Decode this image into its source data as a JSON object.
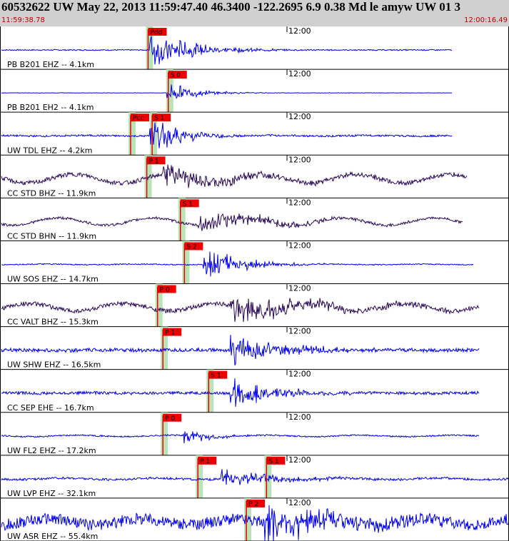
{
  "header": {
    "title": "60532622 UW May 22, 2013 11:59:47.40   46.3400 -122.2695  6.9 0.38 Md le amyw UW 01   3",
    "start_time": "11:59:38.78",
    "end_time": "12:00:16.49"
  },
  "colors": {
    "trace_blue": "#0000ee",
    "trace_purple": "#2a0a5a",
    "pick_red": "#ee0000",
    "highlight_green": "#b8e4b8",
    "header_bg": "#d0d0d0"
  },
  "chart_data": {
    "type": "line",
    "x_axis": {
      "start": "11:59:38.78",
      "end": "12:00:16.49",
      "tick_label": "12:00",
      "tick_time_s": 21.22
    },
    "tracks": [
      {
        "label": "PB B201 EHZ -- 4.1km",
        "color": "blue",
        "picks": [
          {
            "label": "Pdd",
            "t": 10.9
          }
        ],
        "onset_s": 11,
        "amp": 0.9,
        "noise": 0.03,
        "decay": 3,
        "wander": 0,
        "end_s": 33.5
      },
      {
        "label": "PB B201 EH2 -- 4.1km",
        "color": "blue",
        "picks": [
          {
            "label": "S 0",
            "t": 12.4
          }
        ],
        "onset_s": 12.3,
        "amp": 0.5,
        "noise": 0.01,
        "decay": 2,
        "wander": 0,
        "end_s": 33.5
      },
      {
        "label": "UW TDL EHZ -- 4.2km",
        "color": "blue",
        "picks": [
          {
            "label": "Pcc",
            "t": 9.6
          },
          {
            "label": "S 1",
            "t": 11.2
          }
        ],
        "onset_s": 11,
        "amp": 0.75,
        "noise": 0.05,
        "decay": 2.5,
        "wander": 0.02,
        "end_s": 33.5
      },
      {
        "label": "CC STD BHZ -- 11.9km",
        "color": "purple",
        "picks": [
          {
            "label": "P 1",
            "t": 10.8
          }
        ],
        "onset_s": 12,
        "amp": 0.55,
        "noise": 0.12,
        "decay": 5,
        "wander": 0.3,
        "end_s": 34.6
      },
      {
        "label": "CC STD BHN -- 11.9km",
        "color": "purple",
        "picks": [
          {
            "label": "S 1",
            "t": 13.3
          }
        ],
        "onset_s": 14.6,
        "amp": 0.5,
        "noise": 0.07,
        "decay": 5,
        "wander": 0.25,
        "end_s": 34.3
      },
      {
        "label": "UW SOS EHZ -- 14.7km",
        "color": "blue",
        "picks": [
          {
            "label": "S 2",
            "t": 13.6
          }
        ],
        "onset_s": 15,
        "amp": 0.9,
        "noise": 0.03,
        "decay": 2.5,
        "wander": 0.02,
        "end_s": 35.1
      },
      {
        "label": "CC VALT BHZ -- 15.3km",
        "color": "purple",
        "picks": [
          {
            "label": "P 0",
            "t": 11.6
          }
        ],
        "onset_s": 17,
        "amp": 0.6,
        "noise": 0.12,
        "decay": 6,
        "wander": 0.25,
        "end_s": 35.5
      },
      {
        "label": "UW SHW EHZ -- 16.5km",
        "color": "blue",
        "picks": [
          {
            "label": "P 1",
            "t": 12.0
          }
        ],
        "onset_s": 17,
        "amp": 0.7,
        "noise": 0.1,
        "decay": 4,
        "wander": 0.02,
        "end_s": 35.5
      },
      {
        "label": "CC SEP EHE -- 16.7km",
        "color": "blue",
        "picks": [
          {
            "label": "S 1",
            "t": 15.4
          }
        ],
        "onset_s": 17,
        "amp": 0.7,
        "noise": 0.08,
        "decay": 3,
        "wander": 0.02,
        "end_s": 35.5
      },
      {
        "label": "UW FL2 EHZ -- 17.2km",
        "color": "blue",
        "picks": [
          {
            "label": "P 0",
            "t": 12.0
          }
        ],
        "onset_s": 13.5,
        "amp": 0.35,
        "noise": 0.04,
        "decay": 2,
        "wander": 0.05,
        "end_s": 35.5
      },
      {
        "label": "UW LVP EHZ -- 32.1km",
        "color": "blue",
        "picks": [
          {
            "label": "P 1",
            "t": 14.6
          },
          {
            "label": "S 1",
            "t": 19.7
          }
        ],
        "onset_s": 16.3,
        "amp": 0.4,
        "noise": 0.06,
        "decay": 4,
        "wander": 0.05,
        "end_s": 38.1
      },
      {
        "label": "UW ASR EHZ -- 55.4km",
        "color": "blue",
        "picks": [
          {
            "label": "P 2",
            "t": 18.2
          }
        ],
        "onset_s": 19.5,
        "amp": 0.8,
        "noise": 0.32,
        "decay": 5,
        "wander": 0.2,
        "end_s": 38.3
      }
    ]
  }
}
